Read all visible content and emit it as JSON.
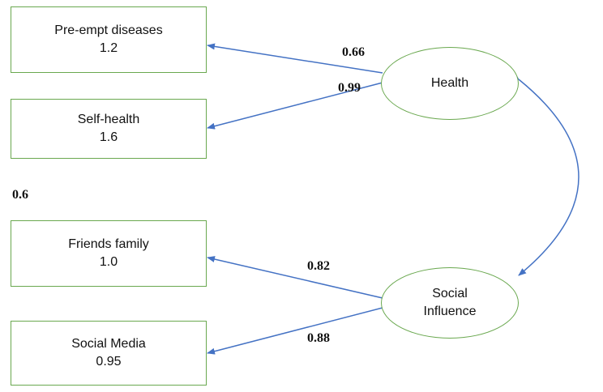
{
  "indicators": [
    {
      "label": "Pre-empt diseases",
      "value": "1.2"
    },
    {
      "label": "Self-health",
      "value": "1.6"
    },
    {
      "label": "Friends family",
      "value": "1.0"
    },
    {
      "label": "Social Media",
      "value": "0.95"
    }
  ],
  "factors": [
    {
      "label": "Health"
    },
    {
      "label_line1": "Social",
      "label_line2": "Influence"
    }
  ],
  "loadings": [
    "0.66",
    "0.99",
    "0.82",
    "0.88"
  ],
  "side_value": "0.6",
  "colors": {
    "box_border": "#6aa84f",
    "arrow": "#4472c4"
  }
}
